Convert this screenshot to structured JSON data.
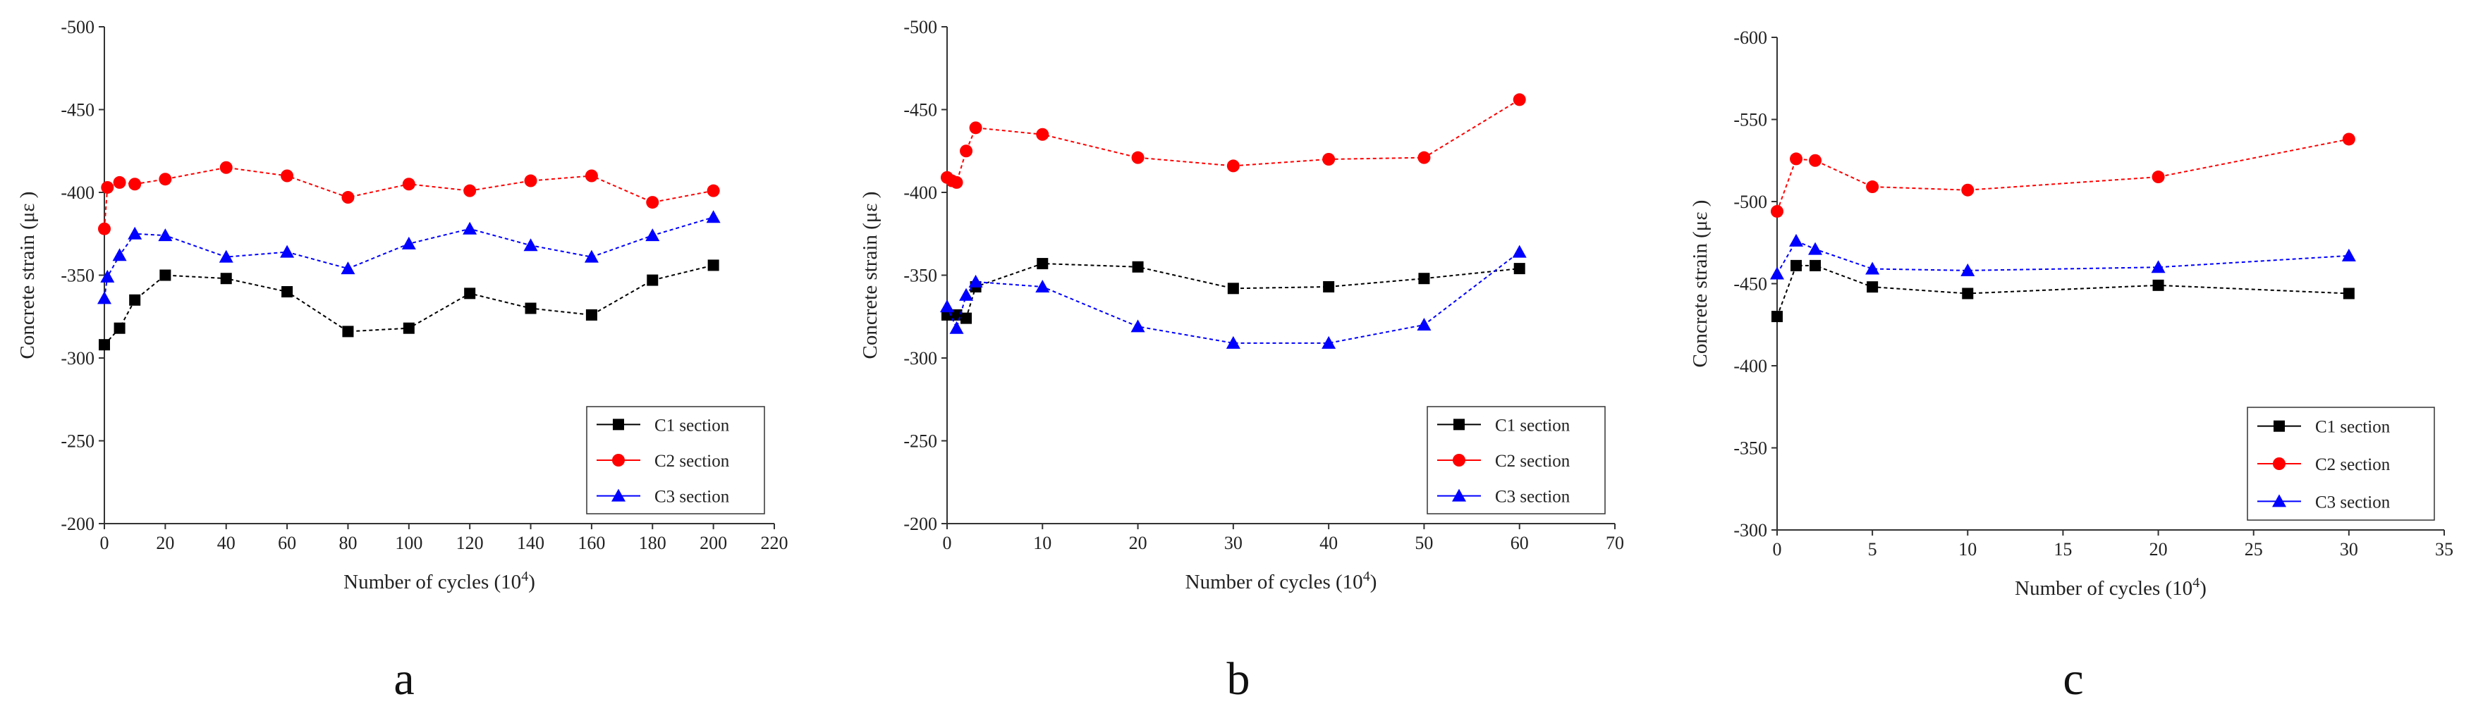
{
  "figure": {
    "captions": [
      "a",
      "b",
      "c"
    ]
  },
  "chart_data": [
    {
      "type": "line",
      "panel": "a",
      "xlabel": "Number of cycles (10",
      "xlabel_sup": "4",
      "xlabel_close": ")",
      "ylabel": "Concrete strain (με )",
      "xlim": [
        0,
        220
      ],
      "ylim": [
        -200,
        -500
      ],
      "xticks": [
        0,
        20,
        40,
        60,
        80,
        100,
        120,
        140,
        160,
        180,
        200,
        220
      ],
      "xtick_labels": [
        "0",
        "20",
        "40",
        "60",
        "80",
        "100",
        "120",
        "140",
        "160",
        "180",
        "200",
        "220"
      ],
      "yticks": [
        -200,
        -250,
        -300,
        -350,
        -400,
        -450,
        -500
      ],
      "ytick_labels": [
        "-200",
        "-250",
        "-300",
        "-350",
        "-400",
        "-450",
        "-500"
      ],
      "grid": false,
      "legend": "bottom-right",
      "series": [
        {
          "name": "C1 section",
          "color": "#000000",
          "marker": "square",
          "x": [
            0,
            5,
            10,
            20,
            40,
            60,
            80,
            100,
            120,
            140,
            160,
            180,
            200
          ],
          "y": [
            -308,
            -318,
            -335,
            -350,
            -348,
            -340,
            -316,
            -318,
            -339,
            -330,
            -326,
            -347,
            -356
          ]
        },
        {
          "name": "C2 section",
          "color": "#ff0000",
          "marker": "circle",
          "x": [
            0,
            1,
            5,
            10,
            20,
            40,
            60,
            80,
            100,
            120,
            140,
            160,
            180,
            200
          ],
          "y": [
            -378,
            -403,
            -406,
            -405,
            -408,
            -415,
            -410,
            -397,
            -405,
            -401,
            -407,
            -410,
            -394,
            -401
          ]
        },
        {
          "name": "C3 section",
          "color": "#0000ff",
          "marker": "triangle",
          "x": [
            0,
            1,
            5,
            10,
            20,
            40,
            60,
            80,
            100,
            120,
            140,
            160,
            180,
            200
          ],
          "y": [
            -336,
            -349,
            -362,
            -375,
            -374,
            -361,
            -364,
            -354,
            -369,
            -378,
            -368,
            -361,
            -374,
            -385
          ]
        }
      ]
    },
    {
      "type": "line",
      "panel": "b",
      "xlabel": "Number of cycles (10",
      "xlabel_sup": "4",
      "xlabel_close": ")",
      "ylabel": "Concrete strain (με )",
      "xlim": [
        0,
        70
      ],
      "ylim": [
        -200,
        -500
      ],
      "xticks": [
        0,
        10,
        20,
        30,
        40,
        50,
        60,
        70
      ],
      "xtick_labels": [
        "0",
        "10",
        "20",
        "30",
        "40",
        "50",
        "60",
        "70"
      ],
      "yticks": [
        -200,
        -250,
        -300,
        -350,
        -400,
        -450,
        -500
      ],
      "ytick_labels": [
        "-200",
        "-250",
        "-300",
        "-350",
        "-400",
        "-450",
        "-500"
      ],
      "grid": false,
      "legend": "bottom-right",
      "series": [
        {
          "name": "C1 section",
          "color": "#000000",
          "marker": "square",
          "x": [
            0,
            1,
            2,
            3,
            10,
            20,
            30,
            40,
            50,
            60
          ],
          "y": [
            -326,
            -326,
            -324,
            -343,
            -357,
            -355,
            -342,
            -343,
            -348,
            -354
          ]
        },
        {
          "name": "C2 section",
          "color": "#ff0000",
          "marker": "circle",
          "x": [
            0,
            0.5,
            1,
            2,
            3,
            10,
            20,
            30,
            40,
            50,
            60
          ],
          "y": [
            -409,
            -407,
            -406,
            -425,
            -439,
            -435,
            -421,
            -416,
            -420,
            -421,
            -456
          ]
        },
        {
          "name": "C3 section",
          "color": "#0000ff",
          "marker": "triangle",
          "x": [
            0,
            1,
            2,
            3,
            10,
            20,
            30,
            40,
            50,
            60
          ],
          "y": [
            -331,
            -318,
            -338,
            -346,
            -343,
            -319,
            -309,
            -309,
            -320,
            -364
          ]
        }
      ]
    },
    {
      "type": "line",
      "panel": "c",
      "xlabel": "Number of cycles (10",
      "xlabel_sup": "4",
      "xlabel_close": ")",
      "ylabel": "Concrete strain (με )",
      "xlim": [
        0,
        35
      ],
      "ylim": [
        -300,
        -600
      ],
      "xticks": [
        0,
        5,
        10,
        15,
        20,
        25,
        30,
        35
      ],
      "xtick_labels": [
        "0",
        "5",
        "10",
        "15",
        "20",
        "25",
        "30",
        "35"
      ],
      "yticks": [
        -300,
        -350,
        -400,
        -450,
        -500,
        -550,
        -600
      ],
      "ytick_labels": [
        "-300",
        "-350",
        "-400",
        "-450",
        "-500",
        "-550",
        "-600"
      ],
      "grid": false,
      "legend": "bottom-right",
      "series": [
        {
          "name": "C1 section",
          "color": "#000000",
          "marker": "square",
          "x": [
            0,
            1,
            2,
            5,
            10,
            20,
            30
          ],
          "y": [
            -430,
            -461,
            -461,
            -448,
            -444,
            -449,
            -444
          ]
        },
        {
          "name": "C2 section",
          "color": "#ff0000",
          "marker": "circle",
          "x": [
            0,
            1,
            2,
            5,
            10,
            20,
            30
          ],
          "y": [
            -494,
            -526,
            -525,
            -509,
            -507,
            -515,
            -538
          ]
        },
        {
          "name": "C3 section",
          "color": "#0000ff",
          "marker": "triangle",
          "x": [
            0,
            1,
            2,
            5,
            10,
            20,
            30
          ],
          "y": [
            -456,
            -476,
            -471,
            -459,
            -458,
            -460,
            -467
          ]
        }
      ]
    }
  ]
}
